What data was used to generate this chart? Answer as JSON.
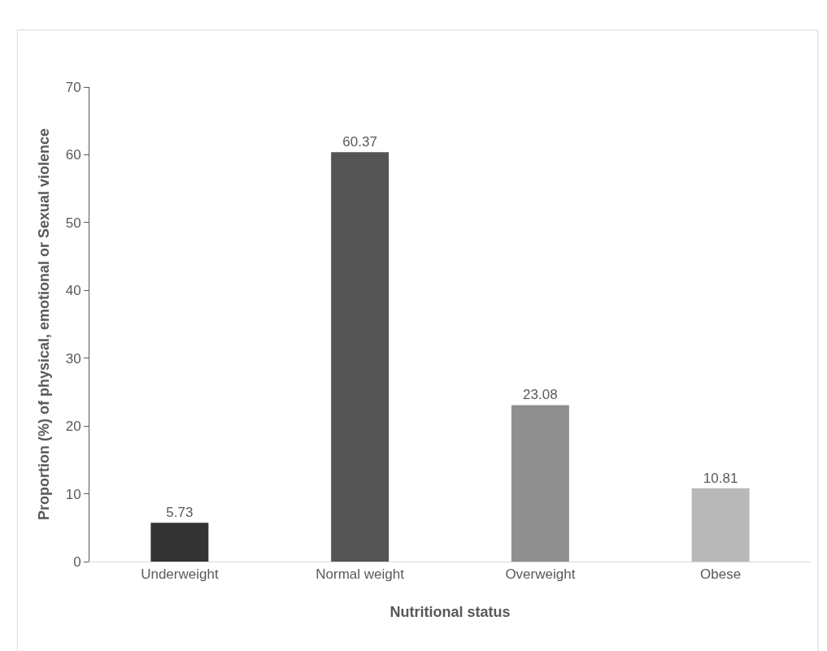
{
  "chart_data": {
    "type": "bar",
    "xlabel": "Nutritional status",
    "ylabel": "Proportion (%) of physical, emotional or Sexual violence",
    "categories": [
      "Underweight",
      "Normal weight",
      "Overweight",
      "Obese"
    ],
    "values": [
      5.73,
      60.37,
      23.08,
      10.81
    ],
    "colors": [
      "#333333",
      "#555555",
      "#8f8f8f",
      "#b8b8b8"
    ],
    "ylim": [
      0,
      70
    ],
    "yticks": [
      0,
      10,
      20,
      30,
      40,
      50,
      60,
      70
    ],
    "grid": false,
    "legend": false,
    "data_labels": true
  }
}
